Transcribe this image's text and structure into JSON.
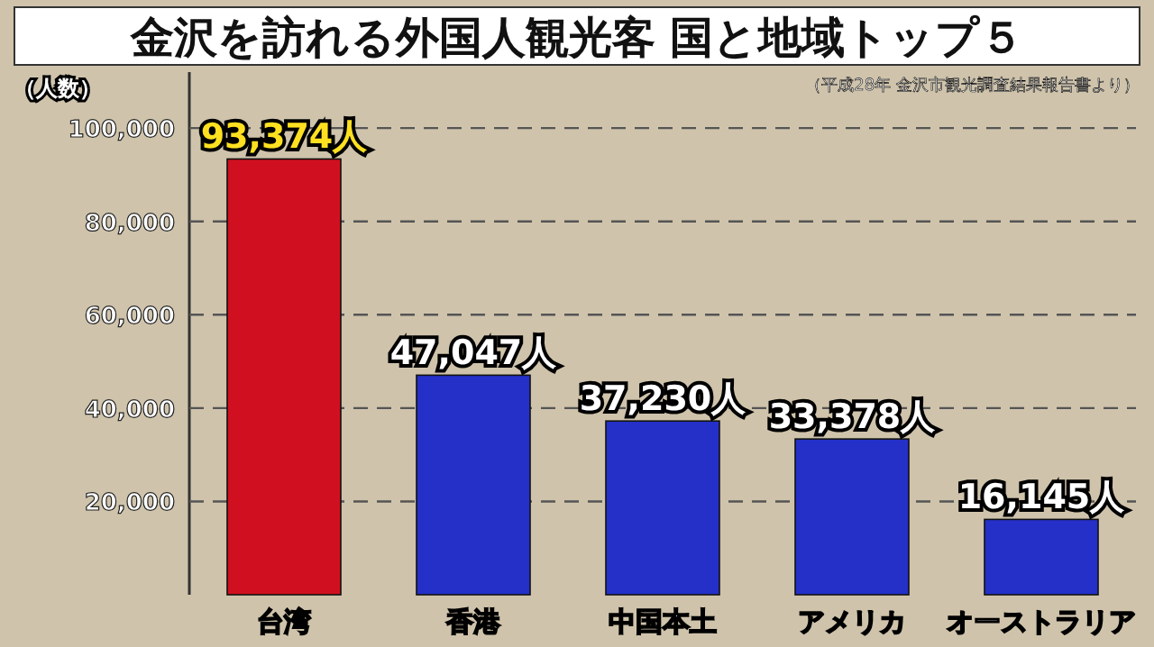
{
  "chart_data": {
    "type": "bar",
    "title": "金沢を訪れる外国人観光客 国と地域トップ５",
    "ylabel": "（人数）",
    "annotations": [
      "（平成28年 金沢市観光調査結果報告書より）"
    ],
    "categories": [
      "台湾",
      "香港",
      "中国本土",
      "アメリカ",
      "オーストラリア"
    ],
    "values": [
      93374,
      47047,
      37230,
      33378,
      16145
    ],
    "colors": [
      "#d01020",
      "#2430c8",
      "#2430c8",
      "#2430c8",
      "#2430c8"
    ],
    "value_labels": [
      "93,374人",
      "47,047人",
      "37,230人",
      "33,378人",
      "16,145人"
    ],
    "ylim": [
      0,
      112000
    ],
    "yticks": [
      {
        "value": 20000,
        "label": "20,000"
      },
      {
        "value": 40000,
        "label": "40,000"
      },
      {
        "value": 60000,
        "label": "60,000"
      },
      {
        "value": 80000,
        "label": "80,000"
      },
      {
        "value": 100000,
        "label": "100,000"
      }
    ],
    "grid": "y"
  }
}
